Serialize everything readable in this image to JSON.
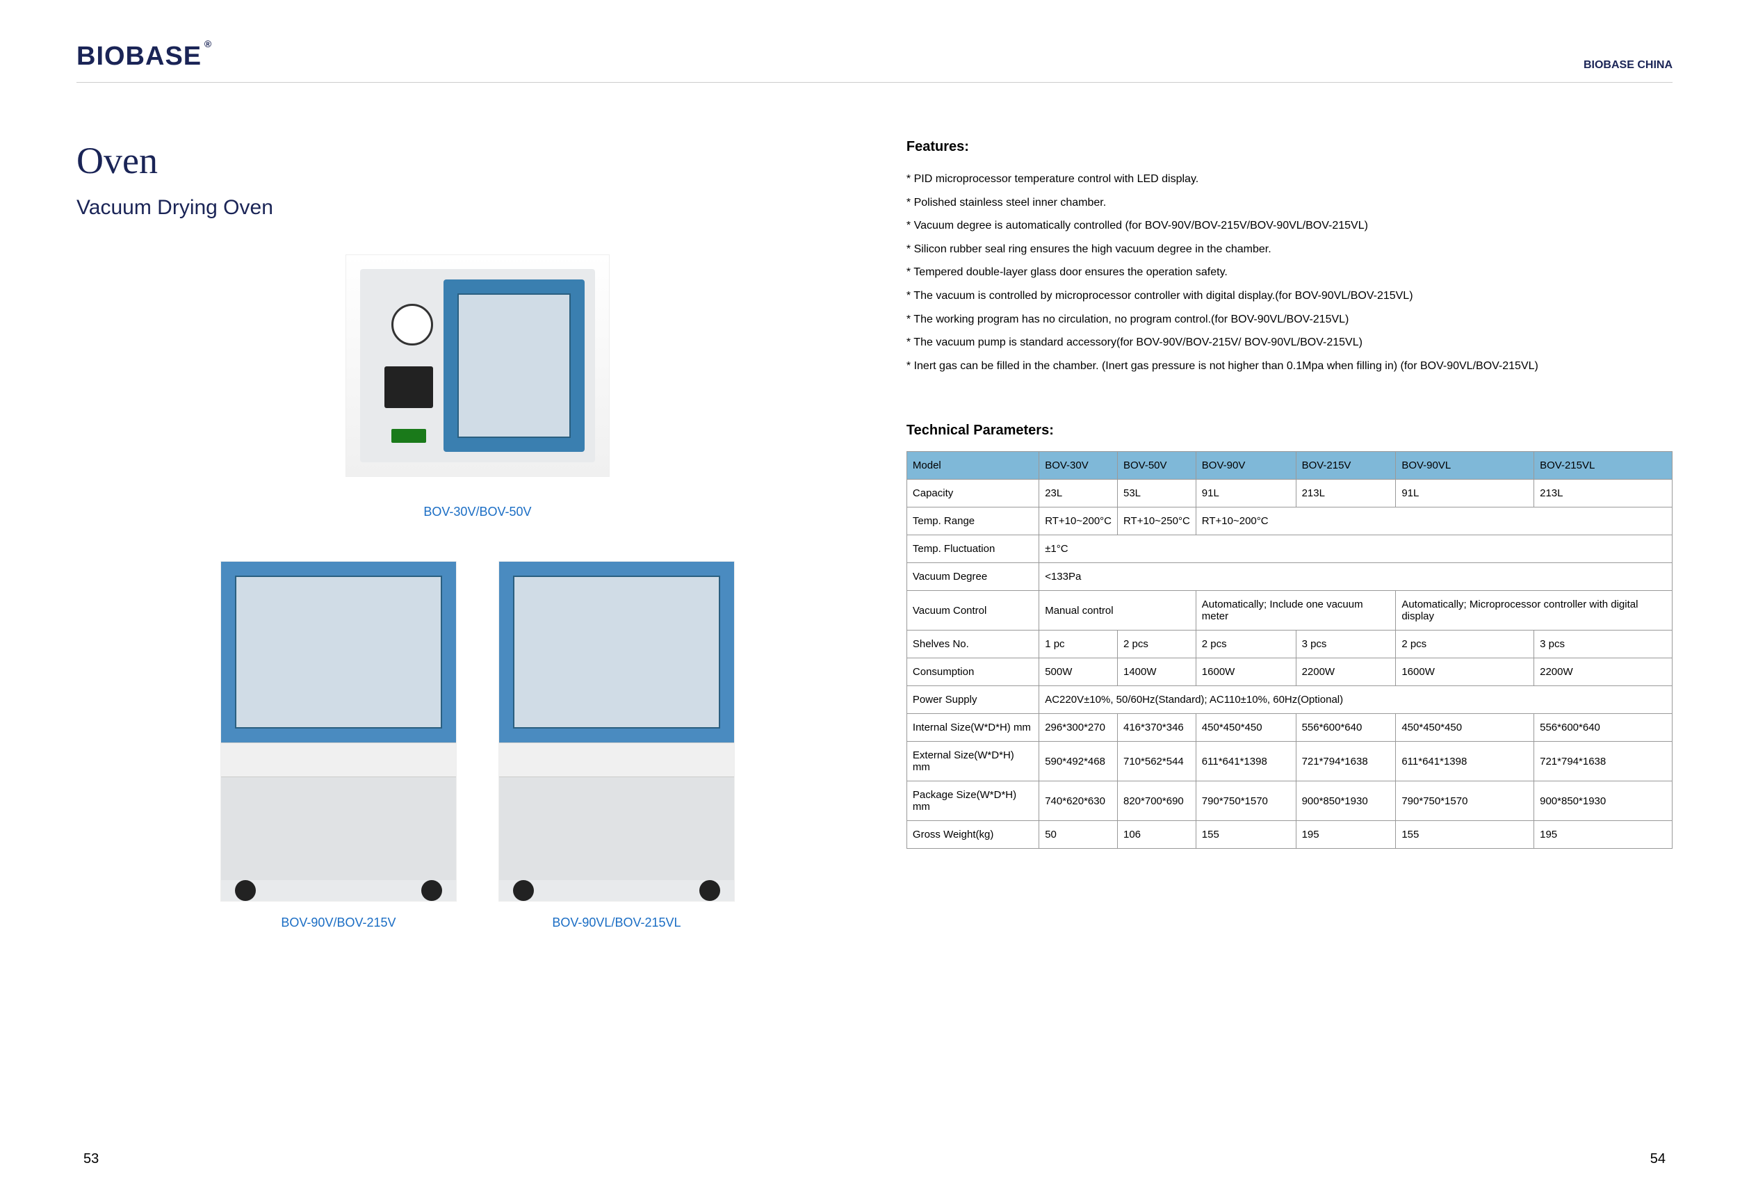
{
  "header": {
    "logo": "BIOBASE",
    "right": "BIOBASE CHINA"
  },
  "title": "Oven",
  "subtitle": "Vacuum Drying Oven",
  "captions": {
    "top": "BOV-30V/BOV-50V",
    "bottom_left": "BOV-90V/BOV-215V",
    "bottom_right": "BOV-90VL/BOV-215VL"
  },
  "features_title": "Features:",
  "features": [
    "PID microprocessor temperature control with LED display.",
    "Polished stainless steel inner chamber.",
    "Vacuum degree is automatically controlled (for BOV-90V/BOV-215V/BOV-90VL/BOV-215VL)",
    "Silicon rubber seal ring ensures the high vacuum degree in the chamber.",
    "Tempered double-layer glass door ensures the operation safety.",
    "The vacuum is controlled by microprocessor controller with digital display.(for BOV-90VL/BOV-215VL)",
    "The working program has no circulation, no program control.(for BOV-90VL/BOV-215VL)",
    "The vacuum pump is standard accessory(for BOV-90V/BOV-215V/ BOV-90VL/BOV-215VL)",
    "Inert gas can be filled in the chamber. (Inert gas pressure is not higher than 0.1Mpa when filling in) (for BOV-90VL/BOV-215VL)"
  ],
  "tech_title": "Technical Parameters:",
  "table": {
    "header_bg": "#7fb8d8",
    "border_color": "#999999",
    "columns": [
      "Model",
      "BOV-30V",
      "BOV-50V",
      "BOV-90V",
      "BOV-215V",
      "BOV-90VL",
      "BOV-215VL"
    ],
    "rows": [
      {
        "label": "Capacity",
        "cells": [
          "23L",
          "53L",
          "91L",
          "213L",
          "91L",
          "213L"
        ]
      },
      {
        "label": "Temp. Range",
        "cells": [
          {
            "text": "RT+10~200°C",
            "span": 1
          },
          {
            "text": "RT+10~250°C",
            "span": 1
          },
          {
            "text": "RT+10~200°C",
            "span": 4
          }
        ]
      },
      {
        "label": "Temp. Fluctuation",
        "cells": [
          {
            "text": "±1°C",
            "span": 6
          }
        ]
      },
      {
        "label": "Vacuum Degree",
        "cells": [
          {
            "text": "<133Pa",
            "span": 6
          }
        ]
      },
      {
        "label": "Vacuum Control",
        "cells": [
          {
            "text": "Manual control",
            "span": 2
          },
          {
            "text": "Automatically; Include one vacuum meter",
            "span": 2
          },
          {
            "text": "Automatically; Microprocessor controller with digital display",
            "span": 2
          }
        ]
      },
      {
        "label": "Shelves No.",
        "cells": [
          "1 pc",
          "2 pcs",
          "2 pcs",
          "3 pcs",
          "2 pcs",
          "3 pcs"
        ]
      },
      {
        "label": "Consumption",
        "cells": [
          "500W",
          "1400W",
          "1600W",
          "2200W",
          "1600W",
          "2200W"
        ]
      },
      {
        "label": "Power Supply",
        "cells": [
          {
            "text": "AC220V±10%, 50/60Hz(Standard); AC110±10%, 60Hz(Optional)",
            "span": 6
          }
        ]
      },
      {
        "label": "Internal Size(W*D*H) mm",
        "cells": [
          "296*300*270",
          "416*370*346",
          "450*450*450",
          "556*600*640",
          "450*450*450",
          "556*600*640"
        ]
      },
      {
        "label": "External Size(W*D*H) mm",
        "cells": [
          "590*492*468",
          "710*562*544",
          "611*641*1398",
          "721*794*1638",
          "611*641*1398",
          "721*794*1638"
        ]
      },
      {
        "label": "Package Size(W*D*H) mm",
        "cells": [
          "740*620*630",
          "820*700*690",
          "790*750*1570",
          "900*850*1930",
          "790*750*1570",
          "900*850*1930"
        ]
      },
      {
        "label": "Gross Weight(kg)",
        "cells": [
          "50",
          "106",
          "155",
          "195",
          "155",
          "195"
        ]
      }
    ]
  },
  "page_left": "53",
  "page_right": "54",
  "colors": {
    "brand": "#1a2456",
    "link": "#1a6dc4",
    "oven_blue": "#4a8bc0"
  }
}
